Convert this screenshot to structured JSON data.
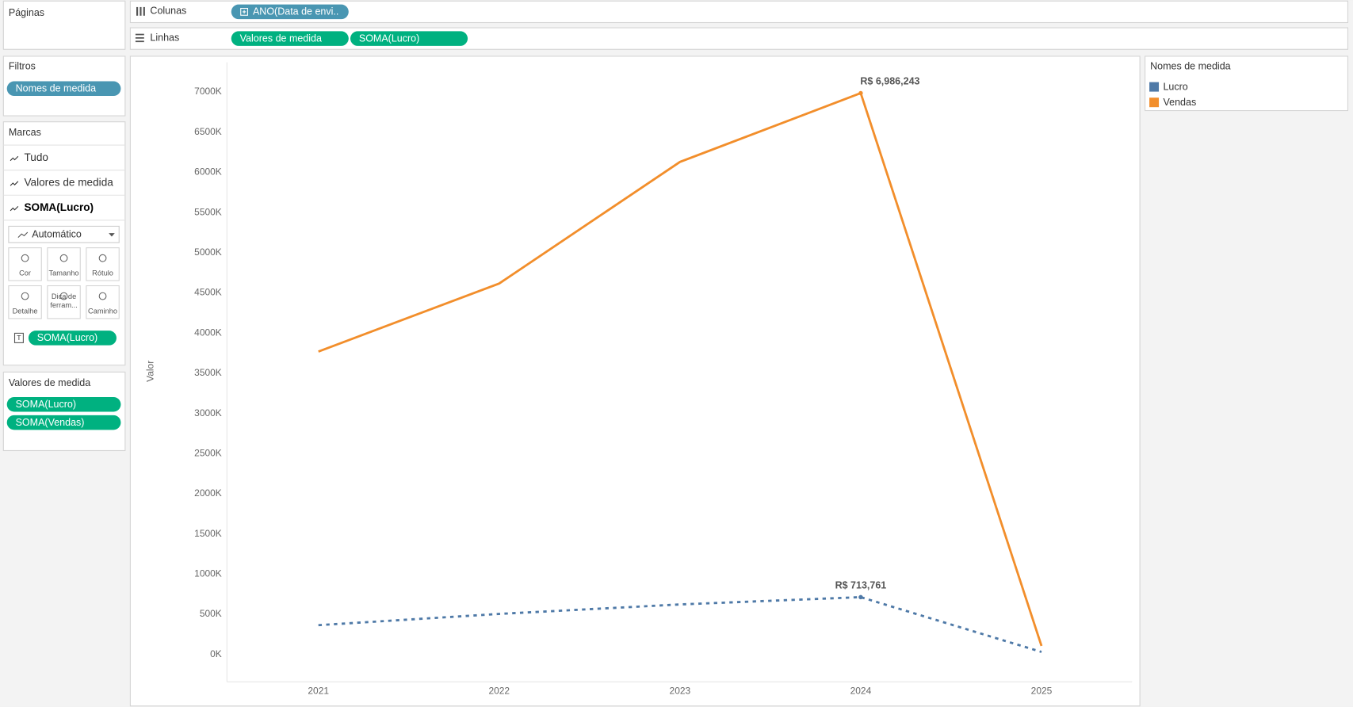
{
  "shelves": {
    "pages_label": "Páginas",
    "columns_label": "Colunas",
    "columns_pills": [
      "ANO(Data de envi.."
    ],
    "rows_label": "Linhas",
    "rows_pills": [
      "Valores de medida",
      "SOMA(Lucro)"
    ]
  },
  "filters": {
    "title": "Filtros",
    "pills": [
      "Nomes de medida"
    ]
  },
  "marks": {
    "title": "Marcas",
    "cards": [
      "Tudo",
      "Valores de medida",
      "SOMA(Lucro)"
    ],
    "mark_type": "Automático",
    "buttons": [
      [
        "Cor"
      ],
      [
        "Tamanho"
      ],
      [
        "Rótulo"
      ],
      [
        "Detalhe"
      ],
      [
        "Dica de",
        "ferram..."
      ],
      [
        "Caminho"
      ]
    ],
    "label_pill": "SOMA(Lucro)"
  },
  "measure_values": {
    "title": "Valores de medida",
    "pills": [
      "SOMA(Lucro)",
      "SOMA(Vendas)"
    ]
  },
  "legend": {
    "title": "Nomes de medida"
  },
  "chart_data": {
    "type": "line",
    "y_label": "Valor",
    "categories": [
      "2021",
      "2022",
      "2023",
      "2024",
      "2025"
    ],
    "series": [
      {
        "name": "Lucro",
        "color": "#4e79a7",
        "style": "dashed",
        "values": [
          365000,
          505000,
          623000,
          713761,
          32000
        ],
        "value_labels": [
          null,
          null,
          null,
          "R$ 713,761",
          null
        ]
      },
      {
        "name": "Vendas",
        "color": "#f28e2b",
        "style": "solid",
        "values": [
          3770000,
          4617000,
          6130000,
          6986243,
          107000
        ],
        "value_labels": [
          null,
          null,
          null,
          "R$ 6,986,243",
          null
        ]
      }
    ],
    "ylim": [
      -340000,
      7370000
    ],
    "yticks": [
      {
        "value": 0,
        "label": "0K"
      },
      {
        "value": 500000,
        "label": "500K"
      },
      {
        "value": 1000000,
        "label": "1000K"
      },
      {
        "value": 1500000,
        "label": "1500K"
      },
      {
        "value": 2000000,
        "label": "2000K"
      },
      {
        "value": 2500000,
        "label": "2500K"
      },
      {
        "value": 3000000,
        "label": "3000K"
      },
      {
        "value": 3500000,
        "label": "3500K"
      },
      {
        "value": 4000000,
        "label": "4000K"
      },
      {
        "value": 4500000,
        "label": "4500K"
      },
      {
        "value": 5000000,
        "label": "5000K"
      },
      {
        "value": 5500000,
        "label": "5500K"
      },
      {
        "value": 6000000,
        "label": "6000K"
      },
      {
        "value": 6500000,
        "label": "6500K"
      },
      {
        "value": 7000000,
        "label": "7000K"
      }
    ],
    "grid": false,
    "legend": "right"
  }
}
